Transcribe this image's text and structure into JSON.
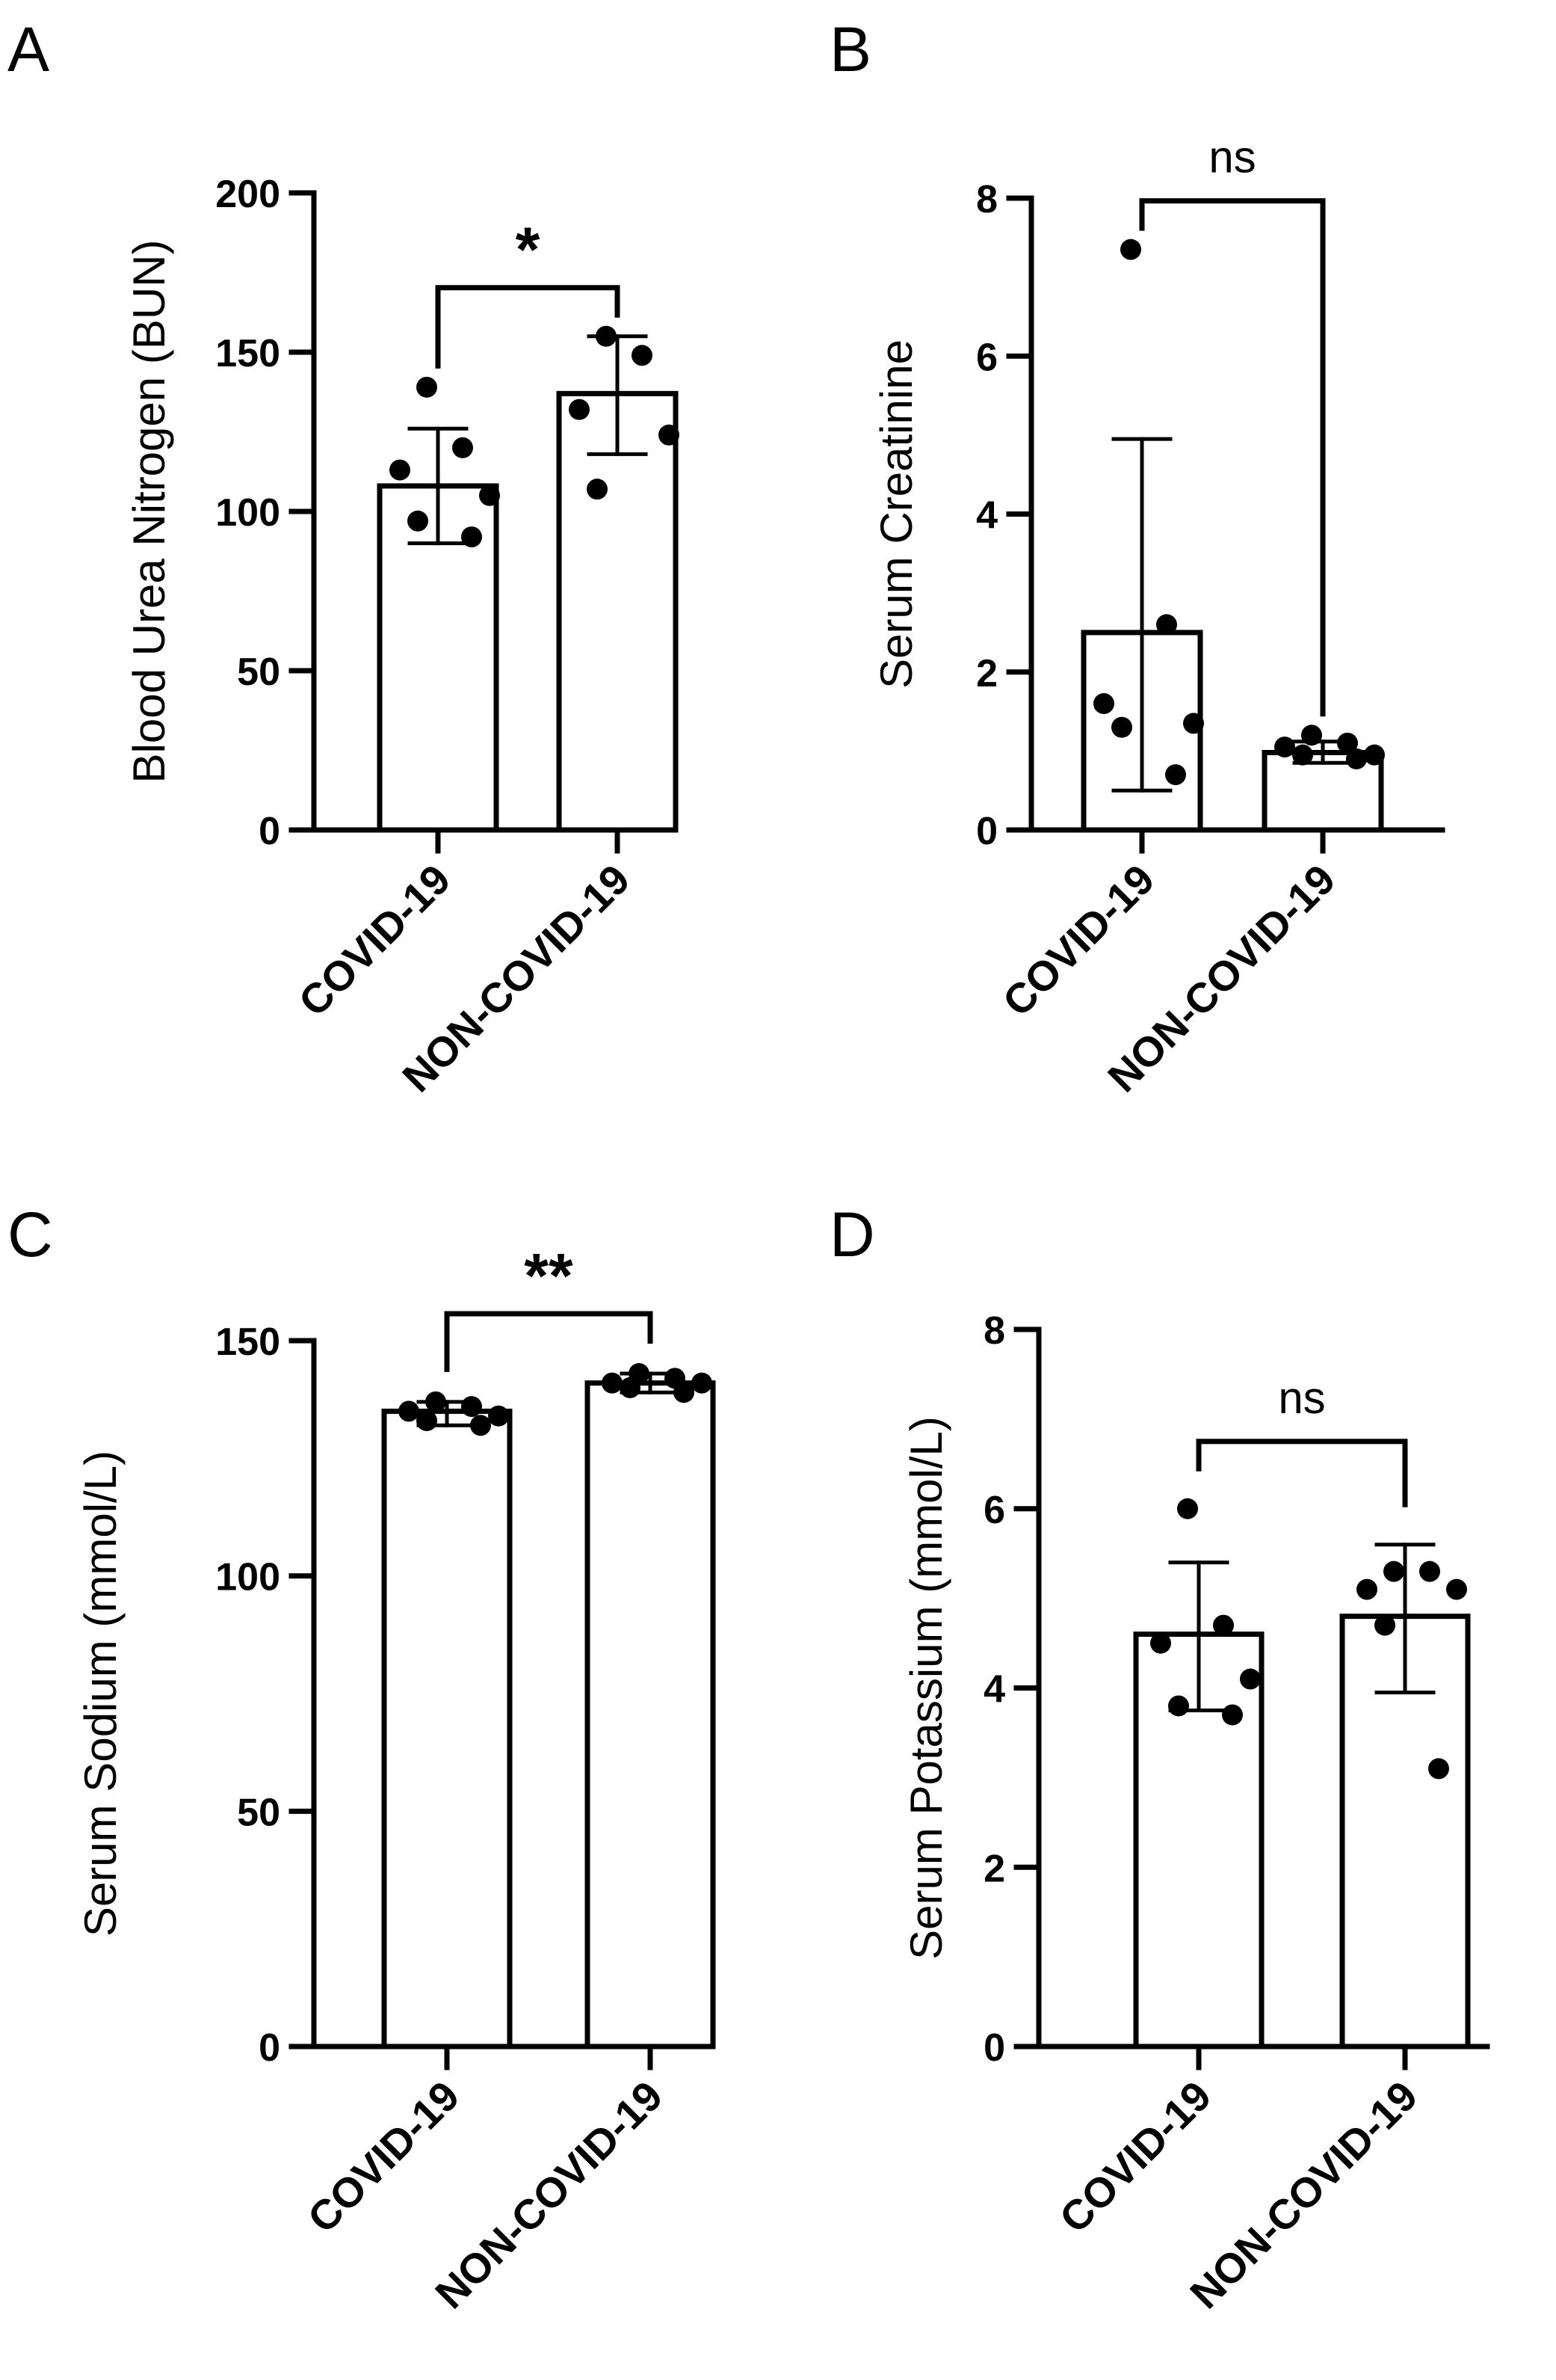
{
  "chart_data": [
    {
      "panel": "A",
      "type": "bar",
      "title": "",
      "xlabel": "",
      "ylabel": "Blood Urea Nitrogen (BUN)",
      "ylim": [
        0,
        200
      ],
      "yticks": [
        0,
        50,
        100,
        150,
        200
      ],
      "categories": [
        "COVID-19",
        "NON-COVID-19"
      ],
      "values": [
        108,
        137
      ],
      "error": [
        [
          90,
          126
        ],
        [
          118,
          155
        ]
      ],
      "points": [
        [
          139,
          120,
          113,
          105,
          97,
          92
        ],
        [
          155,
          149,
          132,
          124,
          107
        ]
      ],
      "significance": "*"
    },
    {
      "panel": "B",
      "type": "bar",
      "title": "",
      "xlabel": "",
      "ylabel": "Serum Creatinine",
      "ylim": [
        0,
        8
      ],
      "yticks": [
        0,
        2,
        4,
        6,
        8
      ],
      "categories": [
        "COVID-19",
        "NON-COVID-19"
      ],
      "values": [
        2.5,
        0.98
      ],
      "error": [
        [
          0.5,
          4.95
        ],
        [
          0.85,
          1.12
        ]
      ],
      "points": [
        [
          7.35,
          2.6,
          1.6,
          1.35,
          1.3,
          0.7
        ],
        [
          1.2,
          1.1,
          1.05,
          0.95,
          0.95,
          0.9
        ]
      ],
      "significance": "ns"
    },
    {
      "panel": "C",
      "type": "bar",
      "title": "",
      "xlabel": "",
      "ylabel": "Serum Sodium (mmol/L)",
      "ylim": [
        0,
        150
      ],
      "yticks": [
        0,
        50,
        100,
        150
      ],
      "categories": [
        "COVID-19",
        "NON-COVID-19"
      ],
      "values": [
        135,
        141
      ],
      "error": [
        [
          132,
          137
        ],
        [
          139,
          143
        ]
      ],
      "points": [
        [
          137,
          136,
          135,
          134,
          133,
          132
        ],
        [
          143,
          142,
          141,
          141,
          140,
          139
        ]
      ],
      "significance": "**"
    },
    {
      "panel": "D",
      "type": "bar",
      "title": "",
      "xlabel": "",
      "ylabel": "Serum Potassium (mmol/L)",
      "ylim": [
        0,
        8
      ],
      "yticks": [
        0,
        2,
        4,
        6,
        8
      ],
      "categories": [
        "COVID-19",
        "NON-COVID-19"
      ],
      "values": [
        4.6,
        4.8
      ],
      "error": [
        [
          3.75,
          5.4
        ],
        [
          3.95,
          5.6
        ]
      ],
      "points": [
        [
          6.0,
          4.7,
          4.5,
          4.1,
          3.8,
          3.7
        ],
        [
          5.3,
          5.3,
          5.1,
          5.1,
          4.7,
          3.1
        ]
      ],
      "significance": "ns"
    }
  ]
}
